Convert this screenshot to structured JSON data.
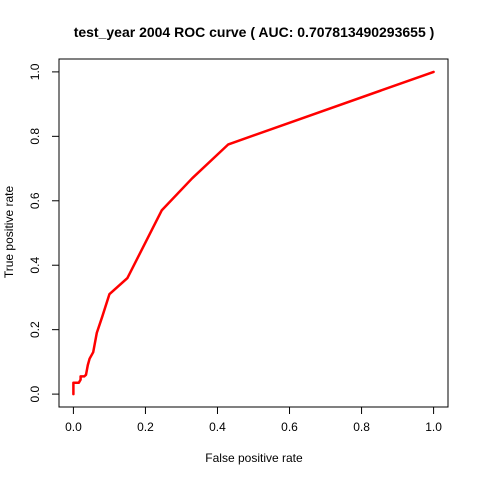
{
  "chart_data": {
    "type": "line",
    "title": "test_year 2004  ROC curve ( AUC: 0.707813490293655 )",
    "xlabel": "False positive rate",
    "ylabel": "True positive rate",
    "xlim": [
      -0.04,
      1.04
    ],
    "ylim": [
      -0.04,
      1.04
    ],
    "xticks": [
      0.0,
      0.2,
      0.4,
      0.6,
      0.8,
      1.0
    ],
    "yticks": [
      0.0,
      0.2,
      0.4,
      0.6,
      0.8,
      1.0
    ],
    "xtick_labels": [
      "0.0",
      "0.2",
      "0.4",
      "0.6",
      "0.8",
      "1.0"
    ],
    "ytick_labels": [
      "0.0",
      "0.2",
      "0.4",
      "0.6",
      "0.8",
      "1.0"
    ],
    "grid": false,
    "series": [
      {
        "name": "ROC curve",
        "color": "#ff0000",
        "x": [
          0.0,
          0.0,
          0.005,
          0.015,
          0.02,
          0.02,
          0.03,
          0.035,
          0.04,
          0.045,
          0.055,
          0.065,
          0.08,
          0.1,
          0.15,
          0.245,
          0.33,
          0.43,
          1.0
        ],
        "y": [
          0.0,
          0.035,
          0.035,
          0.035,
          0.045,
          0.055,
          0.055,
          0.06,
          0.09,
          0.11,
          0.13,
          0.19,
          0.24,
          0.31,
          0.36,
          0.57,
          0.67,
          0.775,
          1.0
        ]
      }
    ]
  }
}
